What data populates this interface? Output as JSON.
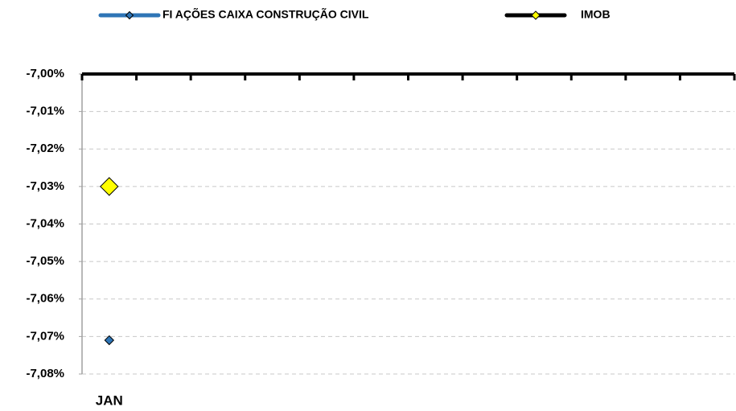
{
  "chart_data": {
    "type": "line",
    "categories": [
      "JAN",
      null,
      null,
      null,
      null,
      null,
      null,
      null,
      null,
      null,
      null,
      null
    ],
    "series": [
      {
        "name": "FI AÇÕES CAIXA CONSTRUÇÃO CIVIL",
        "color": "#2e75b6",
        "line_color": "#2e75b6",
        "values": [
          -7.071,
          null,
          null,
          null,
          null,
          null,
          null,
          null,
          null,
          null,
          null,
          null
        ]
      },
      {
        "name": "IMOB",
        "color": "#ffff00",
        "line_color": "#000000",
        "values": [
          -7.03,
          null,
          null,
          null,
          null,
          null,
          null,
          null,
          null,
          null,
          null,
          null
        ]
      }
    ],
    "ylim": [
      -7.08,
      -7.0
    ],
    "yticks": [
      {
        "value": -7.0,
        "label": "-7,00%"
      },
      {
        "value": -7.01,
        "label": "-7,01%"
      },
      {
        "value": -7.02,
        "label": "-7,02%"
      },
      {
        "value": -7.03,
        "label": "-7,03%"
      },
      {
        "value": -7.04,
        "label": "-7,04%"
      },
      {
        "value": -7.05,
        "label": "-7,05%"
      },
      {
        "value": -7.06,
        "label": "-7,06%"
      },
      {
        "value": -7.07,
        "label": "-7,07%"
      },
      {
        "value": -7.08,
        "label": "-7,08%"
      }
    ],
    "grid": true,
    "legend": "top"
  }
}
